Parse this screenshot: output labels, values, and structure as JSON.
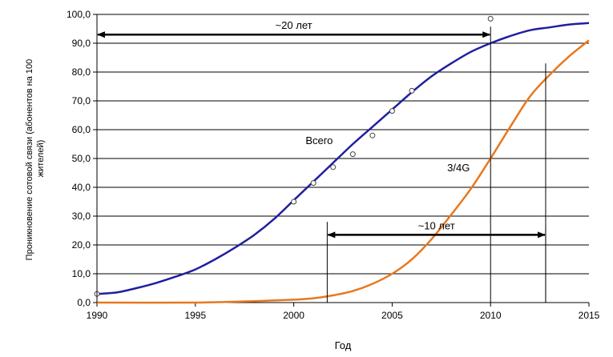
{
  "chart_data": {
    "type": "line",
    "title": "",
    "xlabel": "Год",
    "ylabel_lines": [
      "Проникновение сотовой связи (абонентов на 100",
      "жителей)"
    ],
    "xlim": [
      1990,
      2015
    ],
    "ylim": [
      0,
      100
    ],
    "x_ticks": [
      1990,
      1995,
      2000,
      2005,
      2010,
      2015
    ],
    "y_ticks": [
      0,
      10,
      20,
      30,
      40,
      50,
      60,
      70,
      80,
      90,
      100
    ],
    "y_tick_labels": [
      "0,0",
      "10,0",
      "20,0",
      "30,0",
      "40,0",
      "50,0",
      "60,0",
      "70,0",
      "80,0",
      "90,0",
      "100,0"
    ],
    "grid": "horizontal",
    "colors": {
      "total": "#1f1fa0",
      "g34": "#e8781e",
      "axis": "#000000"
    },
    "series": [
      {
        "name": "Всего",
        "x": [
          1990,
          1991,
          1992,
          1993,
          1994,
          1995,
          1996,
          1997,
          1998,
          1999,
          2000,
          2001,
          2002,
          2003,
          2004,
          2005,
          2006,
          2007,
          2008,
          2009,
          2010,
          2011,
          2012,
          2013,
          2014,
          2015
        ],
        "y": [
          3.0,
          3.5,
          5.0,
          6.8,
          9.0,
          11.5,
          15.0,
          19.0,
          23.5,
          29.0,
          35.5,
          42.0,
          48.5,
          55.0,
          61.0,
          67.0,
          73.0,
          78.5,
          83.0,
          87.0,
          90.0,
          92.5,
          94.5,
          95.5,
          96.5,
          97.0
        ]
      },
      {
        "name": "3/4G",
        "x": [
          1990,
          1995,
          1998,
          2000,
          2001,
          2002,
          2003,
          2004,
          2005,
          2006,
          2007,
          2008,
          2009,
          2010,
          2011,
          2012,
          2013,
          2014,
          2015
        ],
        "y": [
          0,
          0,
          0.5,
          1.0,
          1.5,
          2.5,
          4.0,
          6.5,
          10.0,
          15.0,
          22.0,
          30.5,
          39.5,
          50.0,
          61.0,
          71.5,
          79.0,
          85.5,
          91.0
        ]
      }
    ],
    "observed_points": {
      "x": [
        1990,
        2000,
        2001,
        2002,
        2003,
        2004,
        2005,
        2006,
        2010
      ],
      "y": [
        3.0,
        35.0,
        41.5,
        47.0,
        51.5,
        58.0,
        66.5,
        73.5,
        98.5
      ]
    },
    "annotations": [
      {
        "text": "Всего",
        "x": 2000.6,
        "y": 55.0
      },
      {
        "text": "3/4G",
        "x": 2007.8,
        "y": 45.5
      }
    ],
    "spans": [
      {
        "text": "~20 лет",
        "x_from": 1990,
        "x_to": 2010,
        "y": 93.0,
        "tick_from_y": 93.0,
        "tick_to_y": 0
      },
      {
        "text": "~10 лет",
        "x_from": 2001.7,
        "x_to": 2012.8,
        "y": 23.5,
        "tick_from_y": 28.0,
        "tick_to_y": 0
      }
    ],
    "extra_verticals": [
      {
        "x": 2012.8,
        "y_from": 0,
        "y_to": 83.0
      }
    ]
  }
}
